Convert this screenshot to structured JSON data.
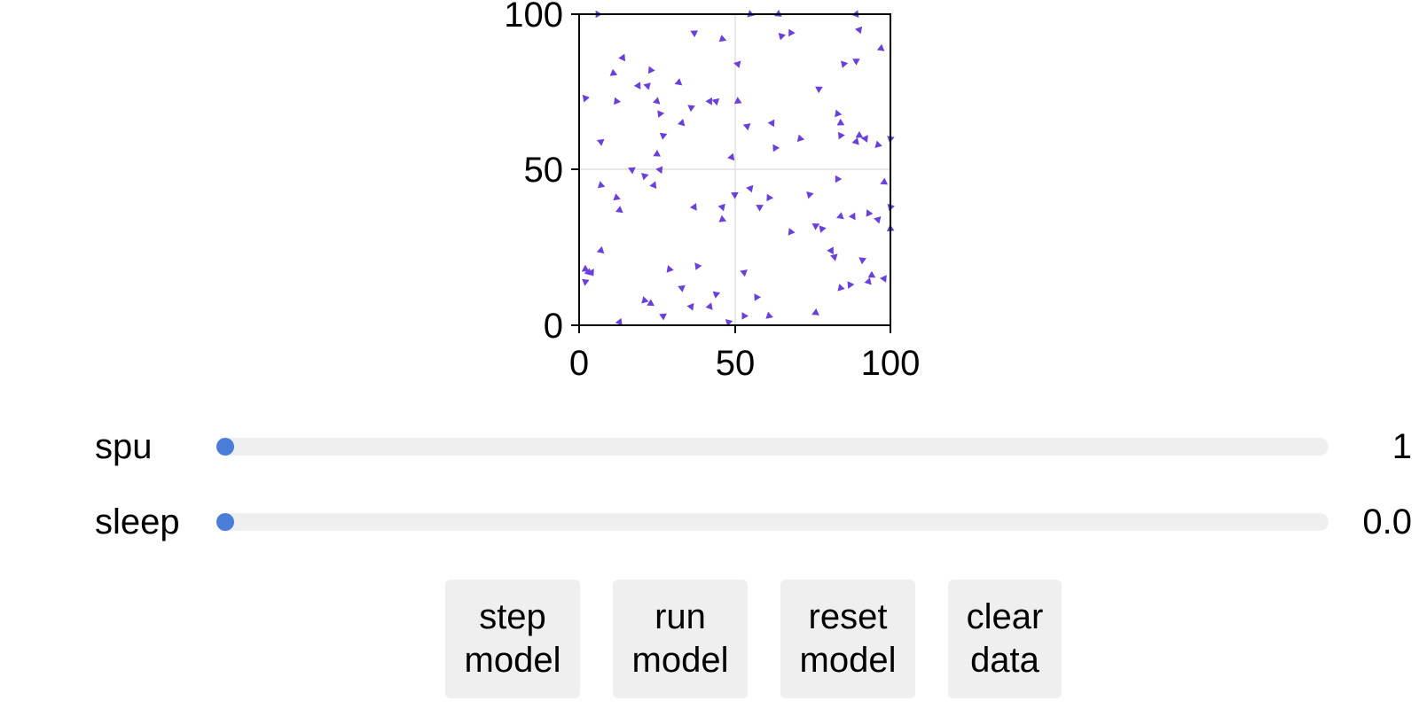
{
  "plot": {
    "accent_color": "#6a3fdc",
    "x_ticks": [
      "0",
      "50",
      "100"
    ],
    "y_ticks": [
      "0",
      "50",
      "100"
    ]
  },
  "chart_data": {
    "type": "scatter",
    "marker": "triangle",
    "xlim": [
      0,
      100
    ],
    "ylim": [
      0,
      100
    ],
    "grid": true,
    "x_ticks": [
      0,
      50,
      100
    ],
    "y_ticks": [
      0,
      50,
      100
    ],
    "points": [
      [
        6,
        100
      ],
      [
        55,
        100
      ],
      [
        64,
        100
      ],
      [
        89,
        100
      ],
      [
        90,
        95
      ],
      [
        37,
        94
      ],
      [
        65,
        93
      ],
      [
        68,
        94
      ],
      [
        46,
        92
      ],
      [
        97,
        89
      ],
      [
        14,
        86
      ],
      [
        51,
        84
      ],
      [
        89,
        85
      ],
      [
        85,
        84
      ],
      [
        23,
        82
      ],
      [
        11,
        81
      ],
      [
        32,
        78
      ],
      [
        19,
        77
      ],
      [
        22,
        77
      ],
      [
        77,
        76
      ],
      [
        2,
        73
      ],
      [
        12,
        72
      ],
      [
        51,
        72
      ],
      [
        25,
        72
      ],
      [
        42,
        72
      ],
      [
        44,
        72
      ],
      [
        36,
        70
      ],
      [
        26,
        68
      ],
      [
        83,
        68
      ],
      [
        84,
        65
      ],
      [
        33,
        65
      ],
      [
        62,
        65
      ],
      [
        54,
        64
      ],
      [
        27,
        61
      ],
      [
        84,
        61
      ],
      [
        71,
        60
      ],
      [
        90,
        61
      ],
      [
        89,
        59
      ],
      [
        92,
        60
      ],
      [
        7,
        59
      ],
      [
        100,
        60
      ],
      [
        63,
        57
      ],
      [
        96,
        58
      ],
      [
        25,
        55
      ],
      [
        49,
        54
      ],
      [
        26,
        50
      ],
      [
        17,
        50
      ],
      [
        21,
        48
      ],
      [
        83,
        47
      ],
      [
        7,
        45
      ],
      [
        98,
        46
      ],
      [
        24,
        45
      ],
      [
        55,
        44
      ],
      [
        50,
        42
      ],
      [
        74,
        42
      ],
      [
        61,
        41
      ],
      [
        12,
        41
      ],
      [
        13,
        37
      ],
      [
        37,
        38
      ],
      [
        46,
        38
      ],
      [
        58,
        38
      ],
      [
        100,
        38
      ],
      [
        93,
        36
      ],
      [
        46,
        34
      ],
      [
        84,
        35
      ],
      [
        88,
        35
      ],
      [
        96,
        34
      ],
      [
        76,
        32
      ],
      [
        78,
        31
      ],
      [
        68,
        30
      ],
      [
        100,
        31
      ],
      [
        7,
        24
      ],
      [
        81,
        24
      ],
      [
        82,
        22
      ],
      [
        91,
        21
      ],
      [
        38,
        19
      ],
      [
        29,
        18
      ],
      [
        2,
        18
      ],
      [
        3,
        17
      ],
      [
        4,
        17
      ],
      [
        53,
        17
      ],
      [
        2,
        14
      ],
      [
        87,
        13
      ],
      [
        84,
        12
      ],
      [
        94,
        16
      ],
      [
        93,
        14
      ],
      [
        98,
        15
      ],
      [
        33,
        12
      ],
      [
        44,
        10
      ],
      [
        57,
        9
      ],
      [
        21,
        8
      ],
      [
        23,
        7
      ],
      [
        42,
        6
      ],
      [
        36,
        6
      ],
      [
        27,
        3
      ],
      [
        48,
        1
      ],
      [
        53,
        3
      ],
      [
        61,
        3
      ],
      [
        76,
        4
      ],
      [
        13,
        1
      ]
    ]
  },
  "sliders": [
    {
      "label": "spu",
      "value": "1",
      "fraction": 0.0
    },
    {
      "label": "sleep",
      "value": "0.0",
      "fraction": 0.0
    }
  ],
  "buttons": [
    {
      "line1": "step",
      "line2": "model"
    },
    {
      "line1": "run",
      "line2": "model"
    },
    {
      "line1": "reset",
      "line2": "model"
    },
    {
      "line1": "clear",
      "line2": "data"
    }
  ]
}
